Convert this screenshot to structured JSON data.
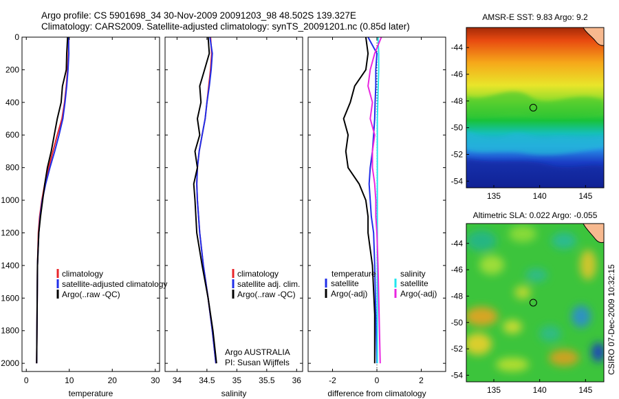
{
  "header": {
    "line1": "Argo profile: CS 5901698_34 30-Nov-2009 20091203_98 48.502S 139.327E",
    "line2": "Climatology: CARS2009. Satellite-adjusted climatology: synTS_20091201.nc (0.85d later)"
  },
  "credit": "CSIRO 07-Dec-2009 10:32:15",
  "colors": {
    "climatology": "#e8242a",
    "satellite": "#1f2ee8",
    "argo": "#000000",
    "sal_satellite": "#22e5ee",
    "sal_argo_adj": "#e826e0",
    "land": "#f7b98f"
  },
  "chart_data": [
    {
      "type": "line",
      "panel": "temperature",
      "xlabel": "temperature",
      "xlim": [
        -1,
        31
      ],
      "ylim": [
        0,
        2050
      ],
      "y_inverted": true,
      "xticks": [
        0,
        10,
        20,
        30
      ],
      "yticks": [
        0,
        200,
        400,
        600,
        800,
        1000,
        1200,
        1400,
        1600,
        1800,
        2000
      ],
      "series": [
        {
          "name": "climatology",
          "color": "#e8242a",
          "x": [
            9.9,
            9.8,
            9.6,
            9.3,
            8.9,
            8.3,
            7.2,
            6.2,
            5.2,
            4.3,
            3.6,
            3.1,
            2.8,
            2.6,
            2.5,
            2.4
          ],
          "y": [
            0,
            100,
            200,
            300,
            400,
            500,
            600,
            700,
            800,
            900,
            1000,
            1100,
            1200,
            1400,
            1700,
            2000
          ]
        },
        {
          "name": "satellite-adjusted climatology",
          "color": "#1f2ee8",
          "x": [
            9.8,
            9.9,
            9.7,
            9.4,
            9.0,
            8.5,
            7.6,
            6.6,
            5.5,
            4.5,
            3.7,
            3.2,
            2.9,
            2.6,
            2.5,
            2.4
          ],
          "y": [
            0,
            100,
            200,
            300,
            400,
            500,
            600,
            700,
            800,
            900,
            1000,
            1100,
            1200,
            1400,
            1700,
            2000
          ]
        },
        {
          "name": "Argo(..raw -QC)",
          "color": "#000000",
          "x": [
            9.6,
            9.4,
            9.3,
            8.4,
            8.1,
            7.2,
            6.5,
            5.8,
            4.9,
            4.3,
            3.8,
            3.3,
            2.9,
            2.6,
            2.5,
            2.4
          ],
          "y": [
            0,
            100,
            200,
            300,
            400,
            500,
            600,
            700,
            800,
            900,
            1000,
            1100,
            1200,
            1400,
            1700,
            2000
          ]
        }
      ],
      "legend": [
        "climatology",
        "satellite-adjusted climatology",
        "Argo(..raw -QC)"
      ]
    },
    {
      "type": "line",
      "panel": "salinity",
      "xlabel": "salinity",
      "xlim": [
        33.8,
        36.1
      ],
      "ylim": [
        0,
        2050
      ],
      "y_inverted": true,
      "xticks": [
        34,
        34.5,
        35,
        35.5,
        36
      ],
      "series": [
        {
          "name": "climatology",
          "color": "#e8242a",
          "x": [
            34.56,
            34.58,
            34.56,
            34.53,
            34.5,
            34.47,
            34.42,
            34.37,
            34.34,
            34.33,
            34.34,
            34.38,
            34.44,
            34.52,
            34.59,
            34.65
          ],
          "y": [
            0,
            100,
            200,
            300,
            400,
            500,
            600,
            700,
            800,
            900,
            1000,
            1200,
            1400,
            1600,
            1800,
            2000
          ]
        },
        {
          "name": "satellite adj. clim.",
          "color": "#1f2ee8",
          "x": [
            34.55,
            34.59,
            34.57,
            34.54,
            34.5,
            34.47,
            34.42,
            34.37,
            34.34,
            34.33,
            34.34,
            34.38,
            34.44,
            34.52,
            34.59,
            34.65
          ],
          "y": [
            0,
            100,
            200,
            300,
            400,
            500,
            600,
            700,
            800,
            900,
            1000,
            1200,
            1400,
            1600,
            1800,
            2000
          ]
        },
        {
          "name": "Argo(..raw -QC)",
          "color": "#000000",
          "x": [
            34.52,
            34.54,
            34.46,
            34.38,
            34.4,
            34.34,
            34.38,
            34.3,
            34.34,
            34.28,
            34.3,
            34.33,
            34.42,
            34.52,
            34.6,
            34.66
          ],
          "y": [
            0,
            100,
            200,
            300,
            400,
            500,
            600,
            700,
            800,
            900,
            1000,
            1200,
            1400,
            1600,
            1800,
            2000
          ]
        }
      ],
      "legend": [
        "climatology",
        "satellite adj. clim.",
        "Argo(..raw -QC)"
      ],
      "annotation": [
        "Argo AUSTRALIA",
        "PI: Susan Wijffels"
      ]
    },
    {
      "type": "line",
      "panel": "difference",
      "xlabel": "difference from climatology",
      "xlim": [
        -3.1,
        3.1
      ],
      "ylim": [
        0,
        2050
      ],
      "y_inverted": true,
      "xticks": [
        -2,
        0,
        2
      ],
      "series": [
        {
          "name": "temperature satellite",
          "color": "#1f2ee8",
          "x": [
            -0.4,
            0.0,
            -0.05,
            -0.05,
            -0.08,
            -0.1,
            -0.15,
            -0.2,
            -0.3,
            -0.35,
            -0.3,
            -0.25,
            -0.15,
            -0.1,
            -0.05,
            0.0
          ],
          "y": [
            0,
            100,
            200,
            300,
            400,
            500,
            600,
            700,
            800,
            900,
            1000,
            1100,
            1200,
            1400,
            1700,
            2000
          ]
        },
        {
          "name": "temperature Argo(-adj)",
          "color": "#000000",
          "x": [
            -0.5,
            -0.4,
            -0.5,
            -1.0,
            -1.2,
            -1.5,
            -1.3,
            -1.4,
            -1.3,
            -0.8,
            -0.5,
            -0.4,
            -0.4,
            -0.2,
            -0.1,
            -0.1
          ],
          "y": [
            0,
            100,
            200,
            300,
            400,
            500,
            600,
            700,
            800,
            900,
            1000,
            1100,
            1200,
            1400,
            1700,
            2000
          ]
        },
        {
          "name": "salinity satellite",
          "color": "#22e5ee",
          "x": [
            0.05,
            0.08,
            0.08,
            0.06,
            0.04,
            0.02,
            0.02,
            0.02,
            0.02,
            0.02,
            0.02,
            0.02,
            0.02,
            0.02,
            0.02,
            0.02
          ],
          "y": [
            0,
            100,
            200,
            300,
            400,
            500,
            600,
            700,
            800,
            900,
            1000,
            1100,
            1200,
            1400,
            1700,
            2000
          ]
        },
        {
          "name": "salinity Argo(-adj)",
          "color": "#e826e0",
          "x": [
            0.2,
            -0.1,
            -0.3,
            -0.4,
            -0.2,
            -0.3,
            -0.1,
            -0.2,
            -0.2,
            -0.1,
            -0.05,
            -0.05,
            0.0,
            0.05,
            0.1,
            0.15
          ],
          "y": [
            0,
            100,
            200,
            300,
            400,
            500,
            600,
            700,
            800,
            900,
            1000,
            1100,
            1200,
            1400,
            1700,
            2000
          ]
        }
      ],
      "legend_temperature": [
        "temperature",
        "satellite",
        "Argo(-adj)"
      ],
      "legend_salinity": [
        "salinity",
        "satellite",
        "Argo(-adj)"
      ]
    },
    {
      "type": "heatmap",
      "panel": "sst-map",
      "title": "AMSR-E SST: 9.83 Argo: 9.2",
      "xlim": [
        132,
        147
      ],
      "ylim": [
        -54.5,
        -42.5
      ],
      "xticks": [
        135,
        140,
        145
      ],
      "yticks": [
        -44,
        -46,
        -48,
        -50,
        -52,
        -54
      ],
      "marker": {
        "lon": 139.3,
        "lat": -48.5
      }
    },
    {
      "type": "heatmap",
      "panel": "sla-map",
      "title": "Altimetric SLA: 0.022 Argo: -0.055",
      "xlim": [
        132,
        147
      ],
      "ylim": [
        -54.5,
        -42.5
      ],
      "xticks": [
        135,
        140,
        145
      ],
      "yticks": [
        -44,
        -46,
        -48,
        -50,
        -52,
        -54
      ],
      "marker": {
        "lon": 139.3,
        "lat": -48.5
      }
    }
  ]
}
